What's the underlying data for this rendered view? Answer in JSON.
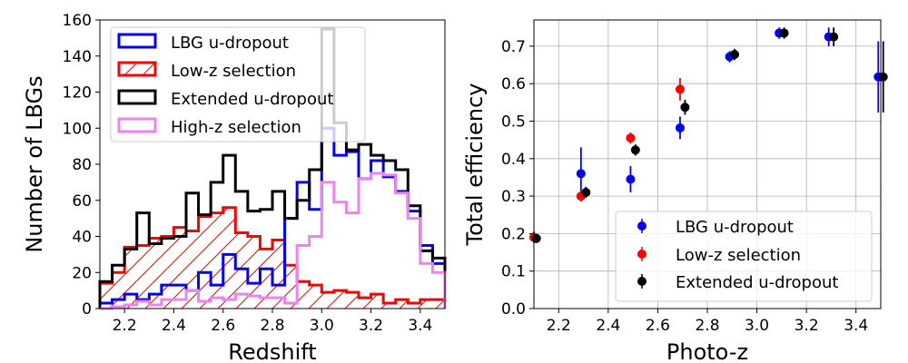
{
  "colors": {
    "blue": "#0000ff",
    "red": "#ff0000",
    "black": "#000000",
    "violet": "#ee82ee",
    "marker_blue": "#0000ff",
    "marker_red": "#ff0000",
    "marker_black": "#000000"
  },
  "chart_data": [
    {
      "type": "histogram",
      "xlabel": "Redshift",
      "ylabel": "Number of LBGs",
      "xlim": [
        2.1,
        3.5
      ],
      "ylim": [
        0,
        160
      ],
      "xticks": [
        "2.2",
        "2.4",
        "2.6",
        "2.8",
        "3.0",
        "3.2",
        "3.4"
      ],
      "yticks": [
        "0",
        "20",
        "40",
        "60",
        "80",
        "100",
        "120",
        "140",
        "160"
      ],
      "bin_edges": [
        2.1,
        2.15,
        2.2,
        2.25,
        2.3,
        2.35,
        2.4,
        2.45,
        2.5,
        2.55,
        2.6,
        2.65,
        2.7,
        2.75,
        2.8,
        2.85,
        2.9,
        2.95,
        3.0,
        3.05,
        3.1,
        3.15,
        3.2,
        3.25,
        3.3,
        3.35,
        3.4,
        3.45,
        3.5
      ],
      "legend_position": "top-left",
      "series": [
        {
          "name": "LBG u-dropout",
          "color": "blue",
          "values": [
            3,
            5,
            8,
            5,
            8,
            13,
            13,
            10,
            20,
            13,
            30,
            22,
            14,
            22,
            13,
            50,
            70,
            55,
            100,
            85,
            87,
            72,
            82,
            73,
            65,
            54,
            35,
            25
          ]
        },
        {
          "name": "Low-z selection",
          "color": "red",
          "hatch": true,
          "values": [
            14,
            20,
            34,
            35,
            39,
            40,
            45,
            43,
            51,
            53,
            56,
            42,
            40,
            33,
            38,
            24,
            15,
            13,
            9,
            10,
            9,
            6,
            8,
            3,
            5,
            3,
            5,
            5
          ]
        },
        {
          "name": "Extended u-dropout",
          "color": "black",
          "values": [
            15,
            24,
            33,
            53,
            36,
            39,
            40,
            64,
            52,
            70,
            85,
            65,
            54,
            55,
            65,
            50,
            60,
            77,
            155,
            103,
            88,
            91,
            85,
            82,
            77,
            57,
            32,
            28
          ]
        },
        {
          "name": "High-z selection",
          "color": "violet",
          "values": [
            0,
            1,
            2,
            4,
            2,
            5,
            5,
            10,
            4,
            6,
            5,
            8,
            7,
            6,
            6,
            3,
            35,
            40,
            70,
            59,
            53,
            72,
            75,
            74,
            64,
            50,
            25,
            20
          ]
        }
      ]
    },
    {
      "type": "scatter-errorbar",
      "xlabel": "Photo-z",
      "ylabel": "Total efficiency",
      "xlim": [
        2.1,
        3.5
      ],
      "ylim": [
        0.0,
        0.77
      ],
      "xticks": [
        "2.2",
        "2.4",
        "2.6",
        "2.8",
        "3.0",
        "3.2",
        "3.4"
      ],
      "yticks": [
        "0.0",
        "0.1",
        "0.2",
        "0.3",
        "0.4",
        "0.5",
        "0.6",
        "0.7"
      ],
      "legend_position": "lower-right",
      "series": [
        {
          "name": "LBG u-dropout",
          "color": "marker_blue",
          "x": [
            2.1,
            2.29,
            2.49,
            2.69,
            2.89,
            3.09,
            3.29,
            3.49
          ],
          "y": [
            0.19,
            0.36,
            0.345,
            0.482,
            0.672,
            0.735,
            0.725,
            0.618
          ],
          "err": [
            0.015,
            0.07,
            0.035,
            0.03,
            0.015,
            0.015,
            0.025,
            0.095
          ]
        },
        {
          "name": "Low-z selection",
          "color": "marker_red",
          "x": [
            2.1,
            2.29,
            2.49,
            2.69
          ],
          "y": [
            0.19,
            0.3,
            0.455,
            0.585
          ],
          "err": [
            0.015,
            0.015,
            0.015,
            0.03
          ]
        },
        {
          "name": "Extended u-dropout",
          "color": "marker_black",
          "x": [
            2.11,
            2.31,
            2.51,
            2.71,
            2.91,
            3.11,
            3.31,
            3.51
          ],
          "y": [
            0.187,
            0.31,
            0.423,
            0.537,
            0.678,
            0.735,
            0.725,
            0.618
          ],
          "err": [
            0.012,
            0.015,
            0.015,
            0.02,
            0.015,
            0.015,
            0.025,
            0.095
          ]
        }
      ]
    }
  ]
}
